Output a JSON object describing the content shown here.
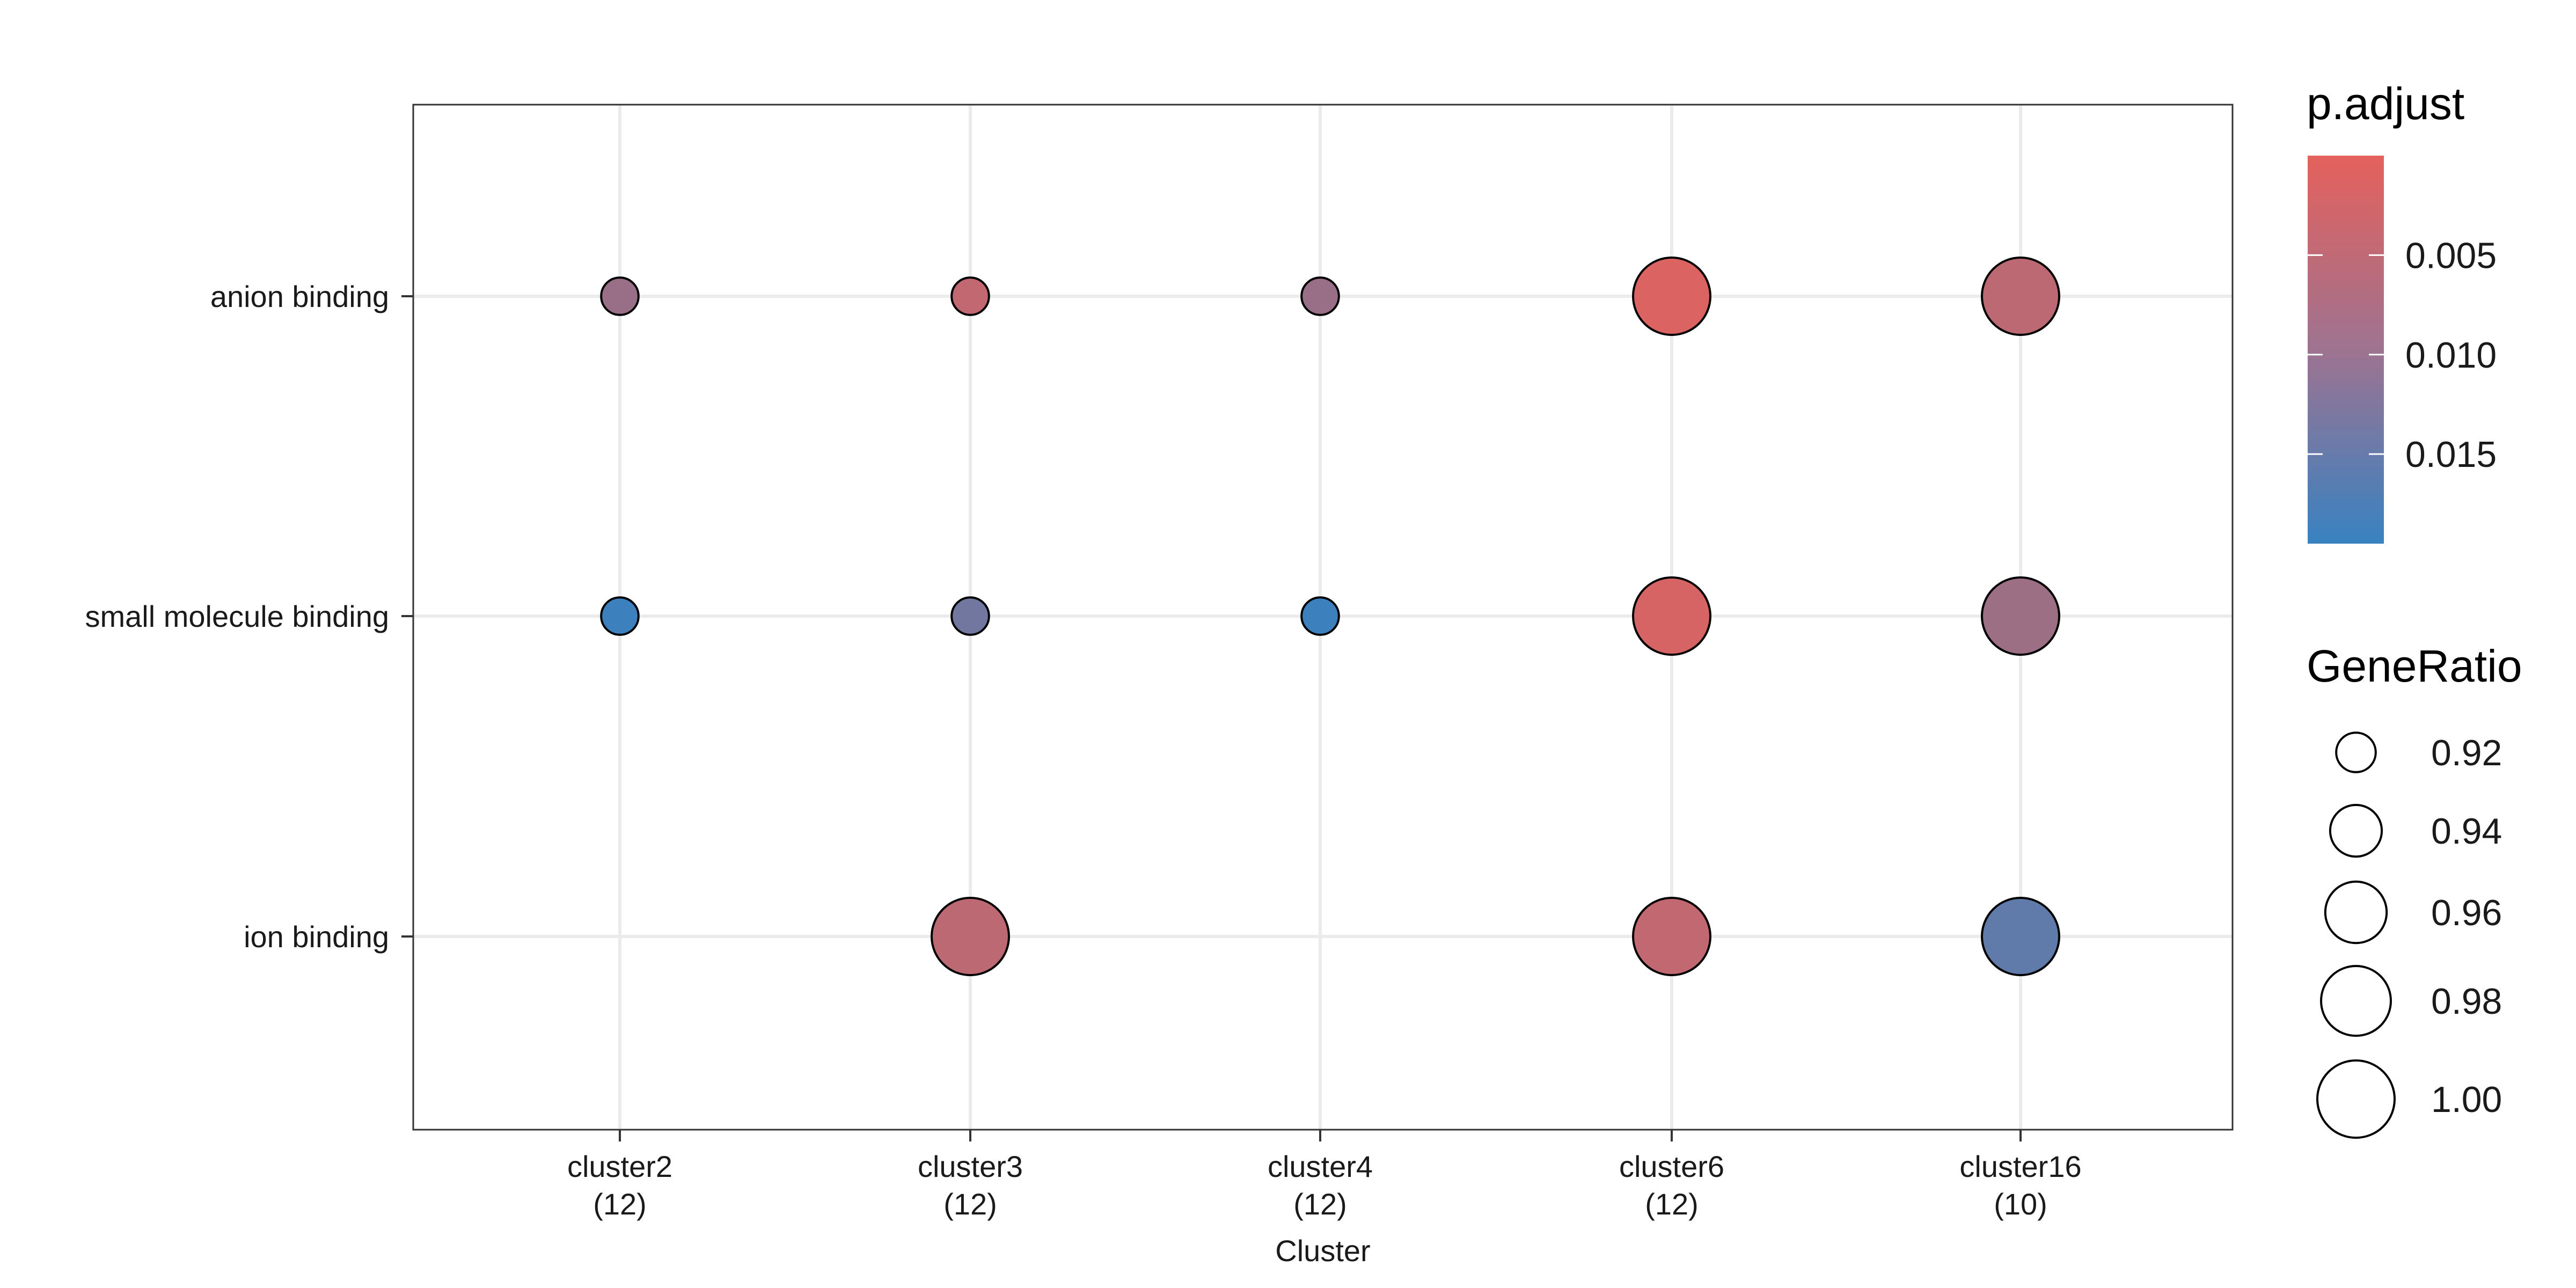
{
  "chart_data": {
    "type": "scatter",
    "xlabel": "Cluster",
    "ylabel": "",
    "x_categories": [
      "cluster2\n(12)",
      "cluster3\n(12)",
      "cluster4\n(12)",
      "cluster6\n(12)",
      "cluster16\n(10)"
    ],
    "y_categories": [
      "anion binding",
      "small molecule binding",
      "ion binding"
    ],
    "points": [
      {
        "x": "cluster2\n(12)",
        "y": "anion binding",
        "gene_ratio": 0.917,
        "p_adjust": 0.0085
      },
      {
        "x": "cluster3\n(12)",
        "y": "anion binding",
        "gene_ratio": 0.917,
        "p_adjust": 0.004
      },
      {
        "x": "cluster4\n(12)",
        "y": "anion binding",
        "gene_ratio": 0.917,
        "p_adjust": 0.0085
      },
      {
        "x": "cluster6\n(12)",
        "y": "anion binding",
        "gene_ratio": 1.0,
        "p_adjust": 0.001
      },
      {
        "x": "cluster16\n(10)",
        "y": "anion binding",
        "gene_ratio": 1.0,
        "p_adjust": 0.0045
      },
      {
        "x": "cluster2\n(12)",
        "y": "small molecule binding",
        "gene_ratio": 0.917,
        "p_adjust": 0.019
      },
      {
        "x": "cluster3\n(12)",
        "y": "small molecule binding",
        "gene_ratio": 0.917,
        "p_adjust": 0.013
      },
      {
        "x": "cluster4\n(12)",
        "y": "small molecule binding",
        "gene_ratio": 0.917,
        "p_adjust": 0.019
      },
      {
        "x": "cluster6\n(12)",
        "y": "small molecule binding",
        "gene_ratio": 1.0,
        "p_adjust": 0.0015
      },
      {
        "x": "cluster16\n(10)",
        "y": "small molecule binding",
        "gene_ratio": 1.0,
        "p_adjust": 0.008
      },
      {
        "x": "cluster3\n(12)",
        "y": "ion binding",
        "gene_ratio": 1.0,
        "p_adjust": 0.0045
      },
      {
        "x": "cluster6\n(12)",
        "y": "ion binding",
        "gene_ratio": 1.0,
        "p_adjust": 0.004
      },
      {
        "x": "cluster16\n(10)",
        "y": "ion binding",
        "gene_ratio": 1.0,
        "p_adjust": 0.015
      }
    ],
    "color_legend": {
      "title": "p.adjust",
      "breaks": [
        0.005,
        0.01,
        0.015
      ],
      "break_labels": [
        "0.005",
        "0.010",
        "0.015"
      ],
      "range": [
        0.0,
        0.0195
      ],
      "low_color": "#E4615C",
      "high_color": "#3882C1"
    },
    "size_legend": {
      "title": "GeneRatio",
      "breaks": [
        0.92,
        0.94,
        0.96,
        0.98,
        1.0
      ],
      "break_labels": [
        "0.92",
        "0.94",
        "0.96",
        "0.98",
        "1.00"
      ]
    },
    "grid": true,
    "legend_position": "right"
  }
}
